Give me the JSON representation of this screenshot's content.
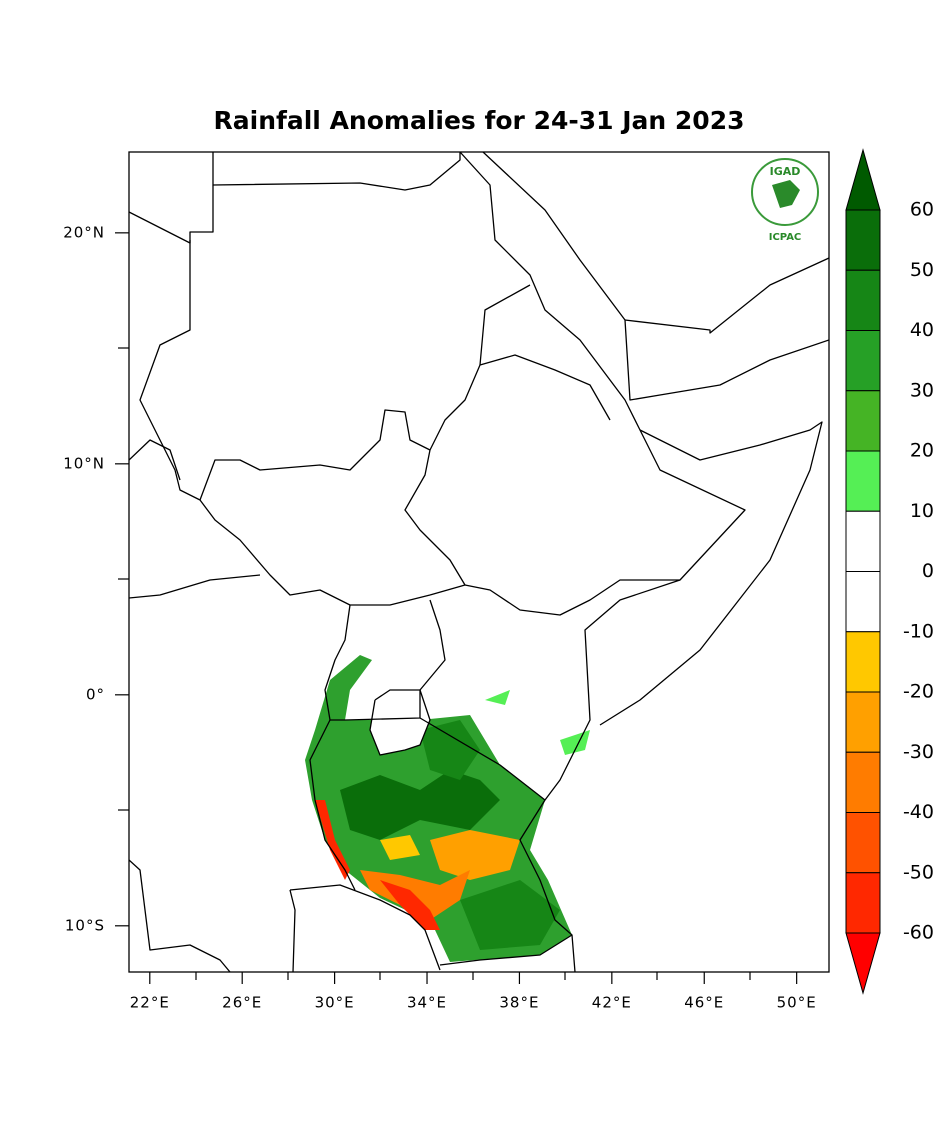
{
  "map": {
    "title": "Rainfall Anomalies for 24-31 Jan 2023",
    "logo": {
      "top": "IGAD",
      "bottom": "ICPAC"
    },
    "xlim": [
      21.1,
      51.4
    ],
    "ylim": [
      -12,
      23.5
    ],
    "xticks": [
      {
        "value": 22,
        "label": "22°E"
      },
      {
        "value": 26,
        "label": "26°E"
      },
      {
        "value": 30,
        "label": "30°E"
      },
      {
        "value": 34,
        "label": "34°E"
      },
      {
        "value": 38,
        "label": "38°E"
      },
      {
        "value": 42,
        "label": "42°E"
      },
      {
        "value": 46,
        "label": "46°E"
      },
      {
        "value": 50,
        "label": "50°E"
      }
    ],
    "yticks": [
      {
        "value": 20,
        "label": "20°N"
      },
      {
        "value": 10,
        "label": "10°N"
      },
      {
        "value": 0,
        "label": "0°"
      },
      {
        "value": -10,
        "label": "10°S"
      }
    ],
    "colorbar": {
      "levels": [
        60,
        50,
        40,
        30,
        20,
        10,
        0,
        -10,
        -20,
        -30,
        -40,
        -50,
        -60
      ],
      "colors": [
        "#005a00",
        "#0a6e0a",
        "#168616",
        "#26a026",
        "#45b425",
        "#55ef55",
        "#ffffff",
        "#ffffff",
        "#ffc800",
        "#ffa000",
        "#ff7c00",
        "#ff5200",
        "#ff2800",
        "#ff0000"
      ]
    }
  }
}
